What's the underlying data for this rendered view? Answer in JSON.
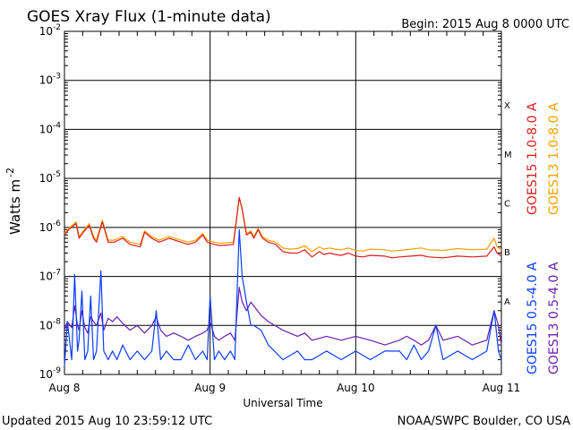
{
  "header": {
    "title": "GOES Xray Flux (1-minute data)",
    "begin": "Begin:  2015 Aug 8 0000 UTC"
  },
  "footer": {
    "updated": "Updated 2015 Aug 10 23:59:12 UTC",
    "credit": "NOAA/SWPC Boulder, CO USA"
  },
  "colors": {
    "goes15_long": "#dd1c1c",
    "goes13_long": "#f5a000",
    "goes15_short": "#0a3cff",
    "goes13_short": "#6a1fb0"
  },
  "chart_data": {
    "type": "line",
    "title": "GOES Xray Flux (1-minute data)",
    "xlabel": "Universal Time",
    "ylabel": "Watts m",
    "ylabel_sup": "-2",
    "yscale": "log",
    "ylim": [
      1e-09,
      0.01
    ],
    "xlim": [
      "2015-08-08",
      "2015-08-11"
    ],
    "grid": true,
    "x_ticks": [
      "Aug 8",
      "Aug 9",
      "Aug 10",
      "Aug 11"
    ],
    "y_ticks": [
      {
        "base": "10",
        "exp": "-2"
      },
      {
        "base": "10",
        "exp": "-3"
      },
      {
        "base": "10",
        "exp": "-4"
      },
      {
        "base": "10",
        "exp": "-5"
      },
      {
        "base": "10",
        "exp": "-6"
      },
      {
        "base": "10",
        "exp": "-7"
      },
      {
        "base": "10",
        "exp": "-8"
      },
      {
        "base": "10",
        "exp": "-9"
      }
    ],
    "flare_classes": [
      "X",
      "M",
      "C",
      "B",
      "A"
    ],
    "series": [
      {
        "name": "GOES15 1.0-8.0 A",
        "color": "#dd1c1c",
        "x": [
          0,
          0.03,
          0.08,
          0.1,
          0.13,
          0.17,
          0.2,
          0.22,
          0.26,
          0.3,
          0.34,
          0.4,
          0.45,
          0.52,
          0.55,
          0.6,
          0.65,
          0.72,
          0.8,
          0.85,
          0.9,
          0.95,
          0.98,
          1.03,
          1.06,
          1.1,
          1.16,
          1.2,
          1.22,
          1.25,
          1.28,
          1.3,
          1.33,
          1.36,
          1.4,
          1.45,
          1.5,
          1.55,
          1.6,
          1.65,
          1.7,
          1.75,
          1.78,
          1.82,
          1.86,
          1.9,
          1.95,
          2.0,
          2.05,
          2.1,
          2.2,
          2.25,
          2.3,
          2.38,
          2.45,
          2.5,
          2.6,
          2.7,
          2.8,
          2.9,
          2.95,
          2.97,
          3.0
        ],
        "y": [
          7e-07,
          9e-07,
          1.2e-06,
          6e-07,
          8e-07,
          1.1e-06,
          6e-07,
          5e-07,
          1.3e-06,
          5e-07,
          5e-07,
          6e-07,
          4.5e-07,
          4e-07,
          8e-07,
          6e-07,
          5e-07,
          6e-07,
          5e-07,
          4.5e-07,
          5e-07,
          7e-07,
          5e-07,
          4.5e-07,
          4.3e-07,
          4.3e-07,
          4.5e-07,
          4.1e-06,
          2.4e-06,
          7e-07,
          8e-07,
          6e-07,
          9e-07,
          6e-07,
          5e-07,
          4.5e-07,
          3.2e-07,
          3e-07,
          3e-07,
          3.5e-07,
          2.5e-07,
          3.2e-07,
          2.8e-07,
          3e-07,
          2.8e-07,
          2.7e-07,
          3e-07,
          2.6e-07,
          2.5e-07,
          2.7e-07,
          2.6e-07,
          2.4e-07,
          2.5e-07,
          2.6e-07,
          2.7e-07,
          2.5e-07,
          2.4e-07,
          2.6e-07,
          2.5e-07,
          2.6e-07,
          4e-07,
          3e-07,
          2.6e-07
        ]
      },
      {
        "name": "GOES13 1.0-8.0 A",
        "color": "#f5a000",
        "x": [
          0,
          0.03,
          0.08,
          0.1,
          0.13,
          0.17,
          0.2,
          0.22,
          0.26,
          0.3,
          0.34,
          0.4,
          0.45,
          0.52,
          0.55,
          0.6,
          0.65,
          0.72,
          0.8,
          0.85,
          0.9,
          0.95,
          0.98,
          1.03,
          1.06,
          1.1,
          1.16,
          1.2,
          1.22,
          1.25,
          1.28,
          1.3,
          1.33,
          1.36,
          1.4,
          1.45,
          1.5,
          1.55,
          1.6,
          1.65,
          1.7,
          1.75,
          1.78,
          1.82,
          1.86,
          1.9,
          1.95,
          2.0,
          2.05,
          2.1,
          2.2,
          2.25,
          2.3,
          2.38,
          2.45,
          2.5,
          2.6,
          2.7,
          2.8,
          2.9,
          2.95,
          2.97,
          3.0
        ],
        "y": [
          7.5e-07,
          9.5e-07,
          1.3e-06,
          6.5e-07,
          8.5e-07,
          1.2e-06,
          6.5e-07,
          5.5e-07,
          1.4e-06,
          5.5e-07,
          5.5e-07,
          6.5e-07,
          5e-07,
          4.5e-07,
          8.5e-07,
          6.5e-07,
          5.5e-07,
          6.5e-07,
          5.5e-07,
          5e-07,
          5.5e-07,
          7.5e-07,
          5.5e-07,
          5e-07,
          4.8e-07,
          4.8e-07,
          5e-07,
          4e-06,
          2.3e-06,
          7.5e-07,
          8.5e-07,
          6.5e-07,
          9.5e-07,
          6.5e-07,
          5.5e-07,
          5e-07,
          3.8e-07,
          3.6e-07,
          3.7e-07,
          4.2e-07,
          3.2e-07,
          4e-07,
          3.6e-07,
          3.8e-07,
          3.6e-07,
          3.5e-07,
          3.8e-07,
          3.4e-07,
          3.3e-07,
          3.6e-07,
          3.5e-07,
          3.3e-07,
          3.4e-07,
          3.6e-07,
          3.8e-07,
          3.5e-07,
          3.4e-07,
          3.7e-07,
          3.5e-07,
          3.6e-07,
          6e-07,
          4e-07,
          3.5e-07
        ]
      },
      {
        "name": "GOES15 0.5-4.0 A",
        "color": "#0a3cff",
        "x": [
          0,
          0.02,
          0.05,
          0.07,
          0.09,
          0.1,
          0.12,
          0.14,
          0.16,
          0.18,
          0.2,
          0.22,
          0.25,
          0.27,
          0.3,
          0.33,
          0.36,
          0.4,
          0.45,
          0.5,
          0.55,
          0.6,
          0.63,
          0.66,
          0.7,
          0.75,
          0.8,
          0.85,
          0.9,
          0.95,
          0.98,
          1.0,
          1.03,
          1.06,
          1.1,
          1.14,
          1.17,
          1.2,
          1.22,
          1.25,
          1.28,
          1.3,
          1.35,
          1.4,
          1.5,
          1.6,
          1.65,
          1.7,
          1.8,
          1.9,
          2.0,
          2.1,
          2.2,
          2.3,
          2.35,
          2.4,
          2.45,
          2.5,
          2.55,
          2.6,
          2.7,
          2.8,
          2.9,
          2.95,
          2.98,
          3.0
        ],
        "y": [
          1.5e-09,
          1.2e-08,
          2e-09,
          1.1e-07,
          3e-09,
          5e-09,
          5e-08,
          2e-09,
          3e-09,
          4e-08,
          2e-09,
          3e-09,
          1.3e-07,
          3e-09,
          2e-09,
          3e-09,
          2e-09,
          4e-09,
          2e-09,
          3e-09,
          2e-09,
          3e-09,
          2e-08,
          2e-09,
          3e-09,
          2e-09,
          2e-09,
          4e-09,
          2e-09,
          3e-09,
          2e-09,
          4e-08,
          2e-09,
          3e-09,
          2e-09,
          3e-09,
          2e-09,
          9e-07,
          1e-07,
          3e-08,
          1e-08,
          1e-08,
          8e-09,
          4e-09,
          2e-09,
          3e-09,
          2e-09,
          2e-09,
          3e-09,
          2e-09,
          3e-09,
          2e-09,
          3e-09,
          3e-09,
          2e-09,
          4e-09,
          2e-09,
          3e-09,
          1e-08,
          2e-09,
          3e-09,
          2e-09,
          3e-09,
          2e-08,
          3e-09,
          2e-09
        ]
      },
      {
        "name": "GOES13 0.5-4.0 A",
        "color": "#6a1fb0",
        "x": [
          0,
          0.02,
          0.05,
          0.07,
          0.09,
          0.1,
          0.12,
          0.14,
          0.16,
          0.18,
          0.2,
          0.22,
          0.25,
          0.27,
          0.3,
          0.33,
          0.36,
          0.4,
          0.45,
          0.5,
          0.55,
          0.6,
          0.63,
          0.66,
          0.7,
          0.75,
          0.8,
          0.85,
          0.9,
          0.95,
          0.98,
          1.0,
          1.03,
          1.06,
          1.1,
          1.14,
          1.17,
          1.2,
          1.22,
          1.25,
          1.28,
          1.3,
          1.35,
          1.4,
          1.5,
          1.6,
          1.65,
          1.7,
          1.8,
          1.9,
          2.0,
          2.1,
          2.2,
          2.3,
          2.35,
          2.4,
          2.45,
          2.5,
          2.55,
          2.6,
          2.7,
          2.8,
          2.9,
          2.95,
          2.98,
          3.0
        ],
        "y": [
          8e-09,
          1.2e-08,
          9e-09,
          2.5e-08,
          1e-08,
          8e-09,
          2e-08,
          9e-09,
          7e-09,
          1.5e-08,
          1.2e-08,
          1e-08,
          1.8e-08,
          8e-09,
          1.4e-08,
          1.2e-08,
          1.5e-08,
          1.1e-08,
          8e-09,
          1e-08,
          7e-09,
          1e-08,
          1.5e-08,
          8e-09,
          6e-09,
          7e-09,
          6e-09,
          5e-09,
          6e-09,
          7e-09,
          8e-09,
          1.2e-08,
          6e-09,
          5e-09,
          6e-09,
          7e-09,
          5e-09,
          6e-08,
          3e-08,
          2e-08,
          3e-08,
          2.5e-08,
          1.6e-08,
          1.2e-08,
          8e-09,
          6e-09,
          7e-09,
          5e-09,
          6e-09,
          5e-09,
          6e-09,
          5e-09,
          4e-09,
          5e-09,
          6e-09,
          5e-09,
          4e-09,
          5e-09,
          1e-08,
          5e-09,
          6e-09,
          4e-09,
          5e-09,
          2e-08,
          1e-08,
          4e-09
        ]
      }
    ]
  }
}
